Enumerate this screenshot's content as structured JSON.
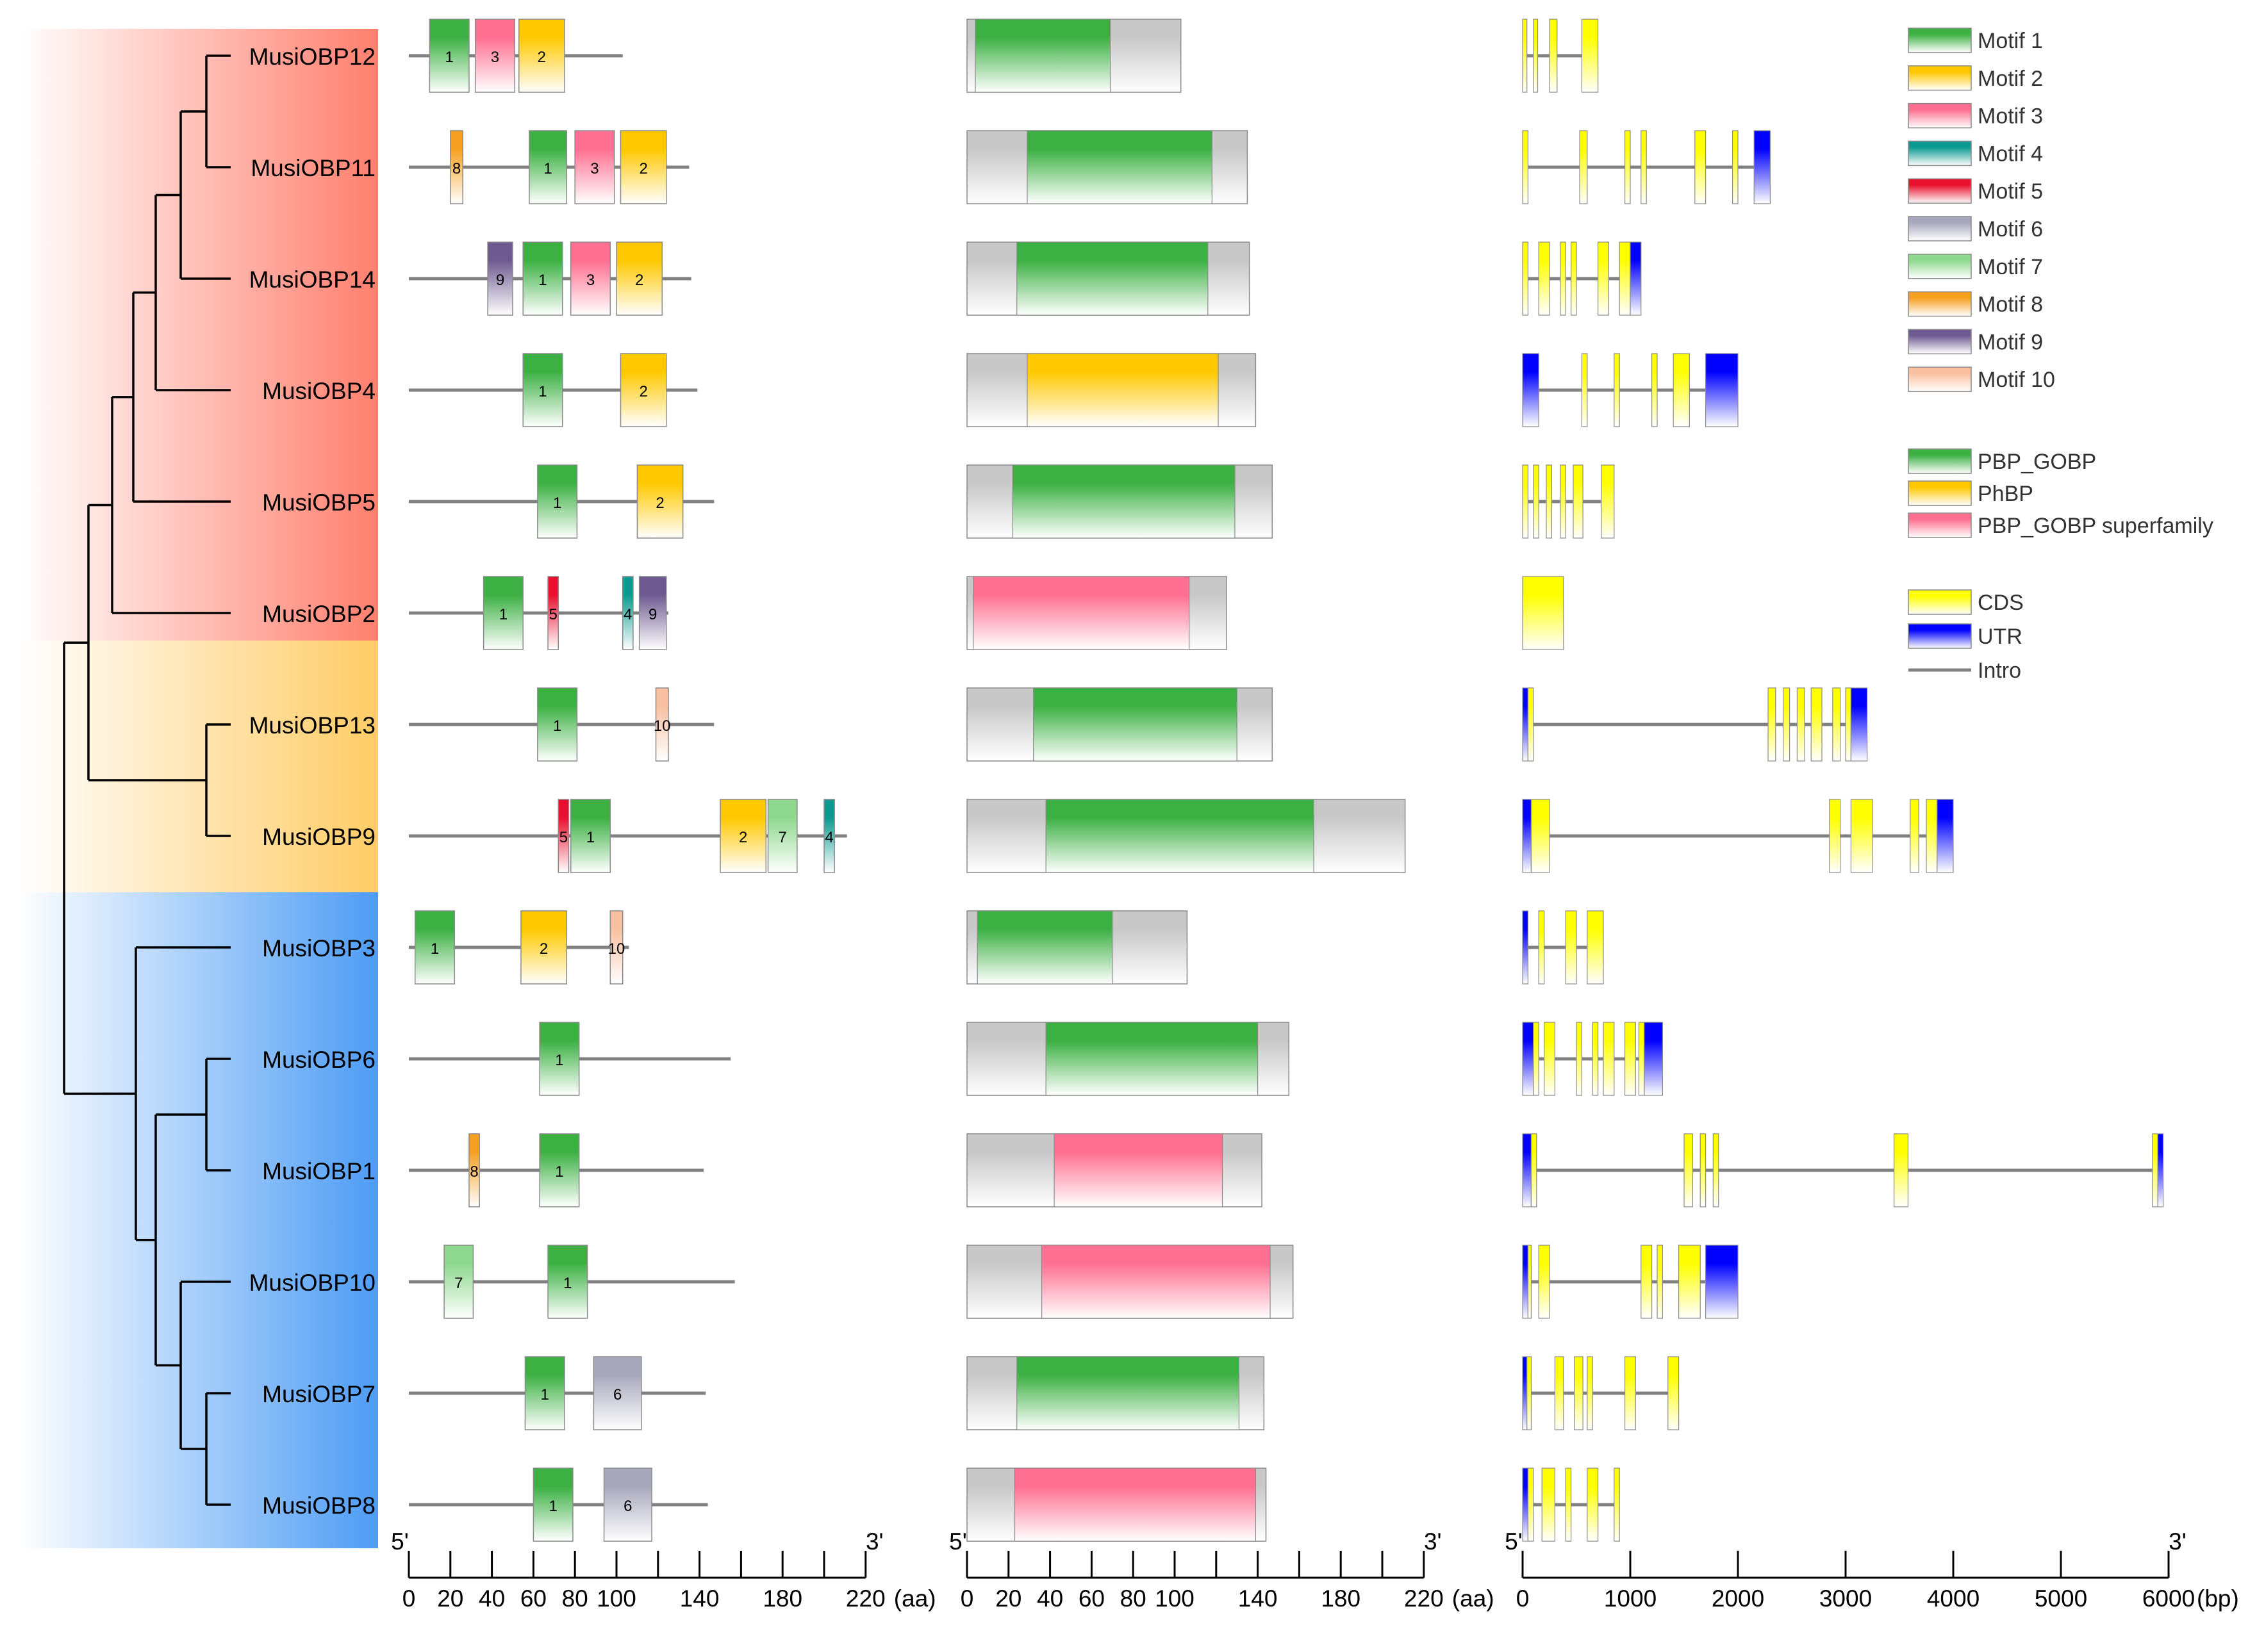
{
  "colors": {
    "group_red": "#ff7f6e",
    "group_orange": "#ffcc66",
    "group_blue": "#4d9cf5",
    "tree_line": "#000000",
    "backbone": "#808080",
    "axis": "#000000"
  },
  "genes": [
    "MusiOBP12",
    "MusiOBP11",
    "MusiOBP14",
    "MusiOBP4",
    "MusiOBP5",
    "MusiOBP2",
    "MusiOBP13",
    "MusiOBP9",
    "MusiOBP3",
    "MusiOBP6",
    "MusiOBP1",
    "MusiOBP10",
    "MusiOBP7",
    "MusiOBP8"
  ],
  "groups": [
    {
      "color_key": "group_red",
      "first": 0,
      "last": 5
    },
    {
      "color_key": "group_orange",
      "first": 6,
      "last": 7
    },
    {
      "color_key": "group_blue",
      "first": 8,
      "last": 13
    }
  ],
  "motif_colors": {
    "1": "#3cb043",
    "2": "#ffc800",
    "3": "#ff6f91",
    "4": "#0a9a8f",
    "5": "#e8102e",
    "6": "#a8a8bc",
    "7": "#8fd88f",
    "8": "#f5a020",
    "9": "#6e5a90",
    "10": "#f8c0a0"
  },
  "motifs": [
    [
      [
        10,
        29,
        "1"
      ],
      [
        32,
        51,
        "3"
      ],
      [
        53,
        75,
        "2"
      ]
    ],
    [
      [
        20,
        26,
        "8"
      ],
      [
        58,
        76,
        "1"
      ],
      [
        80,
        99,
        "3"
      ],
      [
        102,
        124,
        "2"
      ]
    ],
    [
      [
        38,
        50,
        "9"
      ],
      [
        55,
        74,
        "1"
      ],
      [
        78,
        97,
        "3"
      ],
      [
        100,
        122,
        "2"
      ]
    ],
    [
      [
        55,
        74,
        "1"
      ],
      [
        102,
        124,
        "2"
      ]
    ],
    [
      [
        62,
        81,
        "1"
      ],
      [
        110,
        132,
        "2"
      ]
    ],
    [
      [
        36,
        55,
        "1"
      ],
      [
        67,
        72,
        "5"
      ],
      [
        103,
        108,
        "4"
      ],
      [
        111,
        124,
        "9"
      ]
    ],
    [
      [
        62,
        81,
        "1"
      ],
      [
        119,
        125,
        "10"
      ]
    ],
    [
      [
        72,
        77,
        "5"
      ],
      [
        78,
        97,
        "1"
      ],
      [
        150,
        172,
        "2"
      ],
      [
        173,
        187,
        "7"
      ],
      [
        200,
        205,
        "4"
      ]
    ],
    [
      [
        3,
        22,
        "1"
      ],
      [
        54,
        76,
        "2"
      ],
      [
        97,
        103,
        "10"
      ]
    ],
    [
      [
        63,
        82,
        "1"
      ]
    ],
    [
      [
        29,
        34,
        "8"
      ],
      [
        63,
        82,
        "1"
      ]
    ],
    [
      [
        17,
        31,
        "7"
      ],
      [
        67,
        86,
        "1"
      ]
    ],
    [
      [
        56,
        75,
        "1"
      ],
      [
        89,
        112,
        "6"
      ]
    ],
    [
      [
        60,
        79,
        "1"
      ],
      [
        94,
        117,
        "6"
      ]
    ]
  ],
  "protein_length": [
    103,
    135,
    136,
    139,
    147,
    125,
    147,
    211,
    106,
    155,
    142,
    157,
    143,
    144
  ],
  "domain_colors": {
    "PBP_GOBP": "#3cb043",
    "PhBP": "#ffc800",
    "PBP_GOBP superfamily": "#ff6f91",
    "region": "#c8c8c8"
  },
  "domains": [
    {
      "start": 4,
      "end": 69,
      "type": "PBP_GOBP"
    },
    {
      "start": 29,
      "end": 118,
      "type": "PBP_GOBP"
    },
    {
      "start": 24,
      "end": 116,
      "type": "PBP_GOBP"
    },
    {
      "start": 29,
      "end": 121,
      "type": "PhBP"
    },
    {
      "start": 22,
      "end": 129,
      "type": "PBP_GOBP"
    },
    {
      "start": 3,
      "end": 107,
      "type": "PBP_GOBP superfamily"
    },
    {
      "start": 32,
      "end": 130,
      "type": "PBP_GOBP"
    },
    {
      "start": 38,
      "end": 167,
      "type": "PBP_GOBP"
    },
    {
      "start": 5,
      "end": 70,
      "type": "PBP_GOBP"
    },
    {
      "start": 38,
      "end": 140,
      "type": "PBP_GOBP"
    },
    {
      "start": 42,
      "end": 123,
      "type": "PBP_GOBP superfamily"
    },
    {
      "start": 36,
      "end": 146,
      "type": "PBP_GOBP superfamily"
    },
    {
      "start": 24,
      "end": 131,
      "type": "PBP_GOBP"
    },
    {
      "start": 23,
      "end": 139,
      "type": "PBP_GOBP superfamily"
    }
  ],
  "gene_colors": {
    "CDS": "#ffff00",
    "UTR": "#0000ff"
  },
  "gene_length": [
    700,
    2300,
    1100,
    2000,
    850,
    380,
    3200,
    4000,
    750,
    1300,
    5950,
    2000,
    1450,
    900
  ],
  "exons": [
    [
      [
        0,
        40,
        "CDS"
      ],
      [
        100,
        140,
        "CDS"
      ],
      [
        250,
        320,
        "CDS"
      ],
      [
        550,
        700,
        "CDS"
      ]
    ],
    [
      [
        0,
        50,
        "CDS"
      ],
      [
        530,
        600,
        "CDS"
      ],
      [
        950,
        1000,
        "CDS"
      ],
      [
        1100,
        1150,
        "CDS"
      ],
      [
        1600,
        1700,
        "CDS"
      ],
      [
        1950,
        2000,
        "CDS"
      ],
      [
        2150,
        2300,
        "UTR"
      ]
    ],
    [
      [
        0,
        50,
        "CDS"
      ],
      [
        150,
        250,
        "CDS"
      ],
      [
        350,
        400,
        "CDS"
      ],
      [
        450,
        500,
        "CDS"
      ],
      [
        700,
        800,
        "CDS"
      ],
      [
        900,
        1000,
        "CDS"
      ],
      [
        1000,
        1100,
        "UTR"
      ]
    ],
    [
      [
        0,
        150,
        "UTR"
      ],
      [
        550,
        600,
        "CDS"
      ],
      [
        850,
        900,
        "CDS"
      ],
      [
        1200,
        1250,
        "CDS"
      ],
      [
        1400,
        1550,
        "CDS"
      ],
      [
        1700,
        2000,
        "UTR"
      ]
    ],
    [
      [
        0,
        50,
        "CDS"
      ],
      [
        100,
        150,
        "CDS"
      ],
      [
        220,
        270,
        "CDS"
      ],
      [
        350,
        400,
        "CDS"
      ],
      [
        470,
        560,
        "CDS"
      ],
      [
        730,
        850,
        "CDS"
      ]
    ],
    [
      [
        0,
        380,
        "CDS"
      ]
    ],
    [
      [
        0,
        50,
        "UTR"
      ],
      [
        50,
        100,
        "CDS"
      ],
      [
        2280,
        2350,
        "CDS"
      ],
      [
        2420,
        2480,
        "CDS"
      ],
      [
        2550,
        2620,
        "CDS"
      ],
      [
        2680,
        2780,
        "CDS"
      ],
      [
        2880,
        2950,
        "CDS"
      ],
      [
        3000,
        3050,
        "CDS"
      ],
      [
        3050,
        3200,
        "UTR"
      ]
    ],
    [
      [
        0,
        80,
        "UTR"
      ],
      [
        80,
        250,
        "CDS"
      ],
      [
        2850,
        2950,
        "CDS"
      ],
      [
        3050,
        3250,
        "CDS"
      ],
      [
        3600,
        3680,
        "CDS"
      ],
      [
        3750,
        3850,
        "CDS"
      ],
      [
        3850,
        4000,
        "UTR"
      ]
    ],
    [
      [
        0,
        50,
        "UTR"
      ],
      [
        150,
        200,
        "CDS"
      ],
      [
        400,
        500,
        "CDS"
      ],
      [
        600,
        750,
        "CDS"
      ]
    ],
    [
      [
        0,
        100,
        "UTR"
      ],
      [
        100,
        150,
        "CDS"
      ],
      [
        200,
        300,
        "CDS"
      ],
      [
        500,
        550,
        "CDS"
      ],
      [
        650,
        700,
        "CDS"
      ],
      [
        750,
        850,
        "CDS"
      ],
      [
        950,
        1050,
        "CDS"
      ],
      [
        1080,
        1130,
        "CDS"
      ],
      [
        1130,
        1300,
        "UTR"
      ]
    ],
    [
      [
        0,
        80,
        "UTR"
      ],
      [
        80,
        130,
        "CDS"
      ],
      [
        1500,
        1580,
        "CDS"
      ],
      [
        1650,
        1700,
        "CDS"
      ],
      [
        1770,
        1820,
        "CDS"
      ],
      [
        3450,
        3580,
        "CDS"
      ],
      [
        5850,
        5900,
        "CDS"
      ],
      [
        5900,
        5950,
        "UTR"
      ]
    ],
    [
      [
        0,
        50,
        "UTR"
      ],
      [
        50,
        80,
        "CDS"
      ],
      [
        150,
        250,
        "CDS"
      ],
      [
        1100,
        1200,
        "CDS"
      ],
      [
        1250,
        1300,
        "CDS"
      ],
      [
        1450,
        1650,
        "CDS"
      ],
      [
        1700,
        2000,
        "UTR"
      ]
    ],
    [
      [
        0,
        40,
        "UTR"
      ],
      [
        40,
        80,
        "CDS"
      ],
      [
        300,
        380,
        "CDS"
      ],
      [
        480,
        560,
        "CDS"
      ],
      [
        600,
        650,
        "CDS"
      ],
      [
        950,
        1050,
        "CDS"
      ],
      [
        1350,
        1450,
        "CDS"
      ]
    ],
    [
      [
        0,
        50,
        "UTR"
      ],
      [
        50,
        100,
        "CDS"
      ],
      [
        180,
        300,
        "CDS"
      ],
      [
        400,
        450,
        "CDS"
      ],
      [
        600,
        700,
        "CDS"
      ],
      [
        850,
        900,
        "CDS"
      ]
    ]
  ],
  "tree_edges": [
    [
      0.3,
      0.05,
      0.19,
      0.99,
      0.15,
      0.15
    ],
    [
      0.3,
      0.05,
      0.3,
      0.35,
      1.0,
      1.0
    ],
    [
      0.1,
      0.2,
      0.3,
      0.7,
      0.35,
      0.3
    ],
    [
      0.15,
      0.1,
      0.4,
      0.6,
      0.55,
      0.45
    ],
    [
      0.15,
      0.05,
      0.5,
      0.8,
      0.6,
      0.2
    ],
    [
      0.05,
      0.1,
      0.6,
      0.8,
      0.4,
      0.7
    ]
  ],
  "scale_protein": {
    "five": "5'",
    "three": "3'",
    "unit": "(aa)",
    "ticks": [
      0,
      20,
      40,
      60,
      80,
      100,
      140,
      180,
      220
    ],
    "minor": [
      0,
      20,
      40,
      60,
      80,
      100,
      120,
      140,
      160,
      180,
      200,
      220
    ],
    "max": 220
  },
  "scale_gene": {
    "five": "5'",
    "three": "3'",
    "unit": "(bp)",
    "ticks": [
      0,
      1000,
      2000,
      3000,
      4000,
      5000,
      6000
    ],
    "max": 6000
  },
  "legend_motifs": [
    "Motif 1",
    "Motif 2",
    "Motif 3",
    "Motif 4",
    "Motif 5",
    "Motif 6",
    "Motif 7",
    "Motif 8",
    "Motif 9",
    "Motif 10"
  ],
  "legend_domains": [
    "PBP_GOBP",
    "PhBP",
    "PBP_GOBP superfamily"
  ],
  "legend_structure": {
    "cds": "CDS",
    "utr": "UTR",
    "intron": "Intro"
  }
}
